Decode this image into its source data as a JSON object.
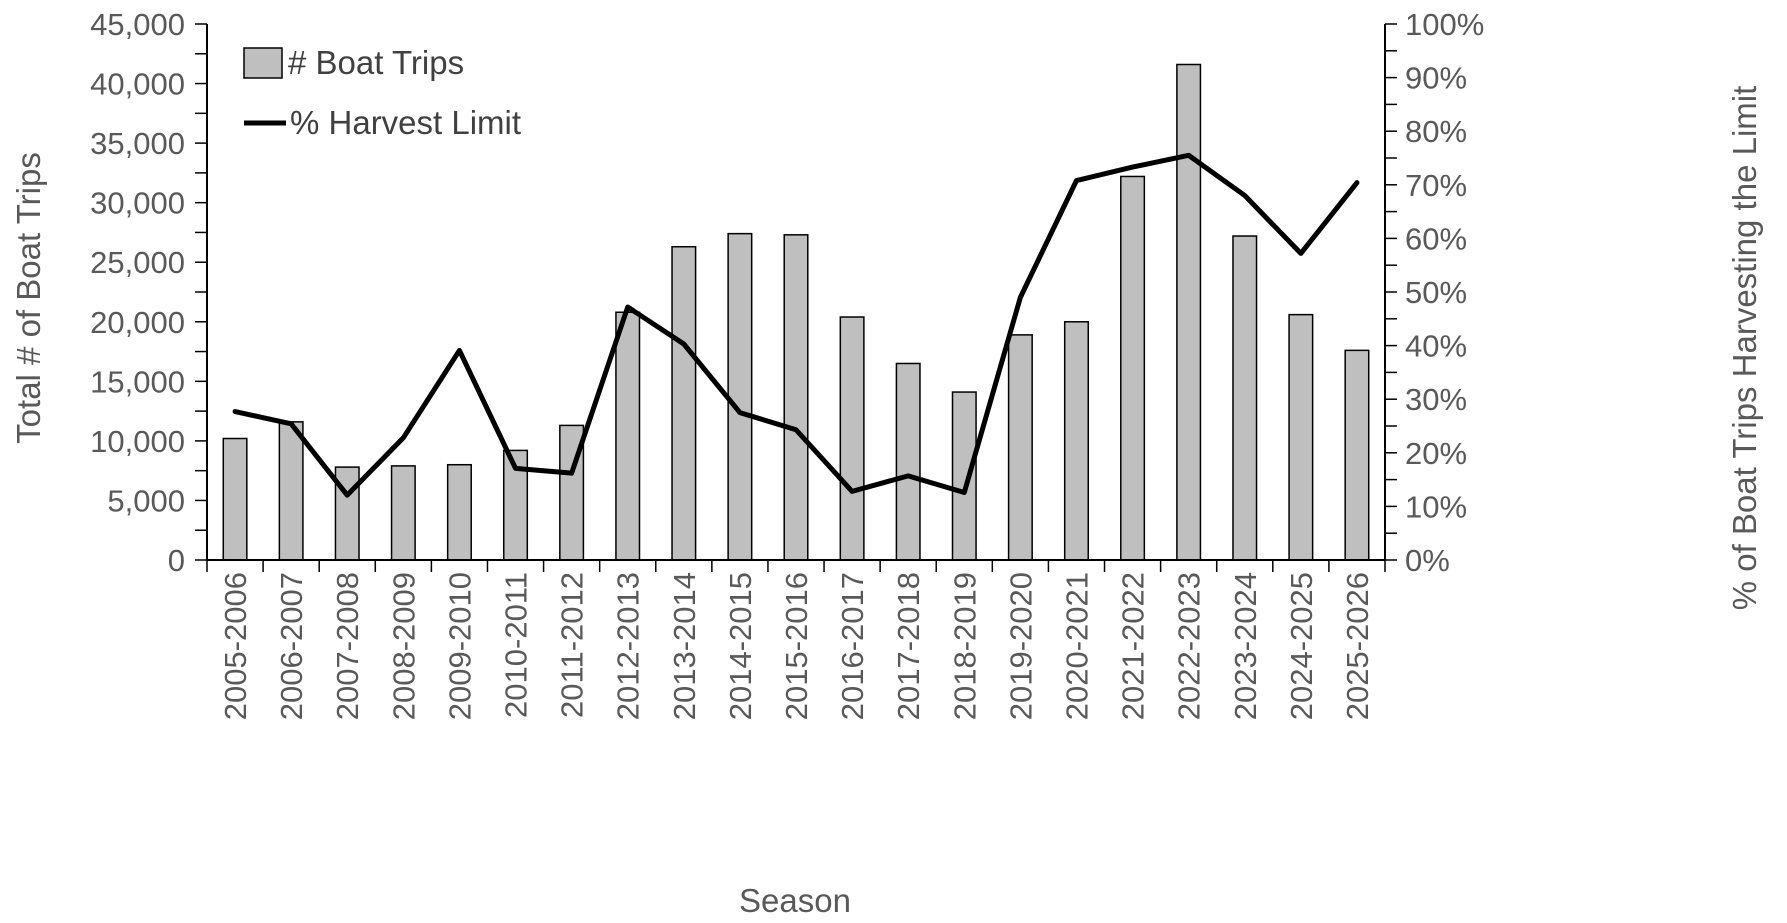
{
  "chart_data": {
    "type": "bar",
    "categories": [
      "2005-2006",
      "2006-2007",
      "2007-2008",
      "2008-2009",
      "2009-2010",
      "2010-2011",
      "2011-2012",
      "2012-2013",
      "2013-2014",
      "2014-2015",
      "2015-2016",
      "2016-2017",
      "2017-2018",
      "2018-2019",
      "2019-2020",
      "2020-2021",
      "2021-2022",
      "2022-2023",
      "2023-2024",
      "2024-2025",
      "2025-2026"
    ],
    "series": [
      {
        "name": "# Boat Trips",
        "type": "bar",
        "axis": "left",
        "color": "#bfbfbf",
        "values": [
          10200,
          11600,
          7800,
          7900,
          8000,
          9200,
          11300,
          20800,
          26300,
          27400,
          27300,
          20400,
          16500,
          14100,
          18900,
          20000,
          32200,
          41600,
          27200,
          20600,
          17600
        ]
      },
      {
        "name": "% Harvest Limit",
        "type": "line",
        "axis": "right",
        "color": "#000000",
        "values": [
          27.7,
          25.4,
          12.1,
          22.8,
          39.1,
          17.1,
          16.2,
          47.2,
          40.3,
          27.5,
          24.3,
          12.8,
          15.7,
          12.6,
          49.0,
          70.8,
          73.3,
          75.5,
          68.0,
          57.2,
          70.4
        ]
      }
    ],
    "xlabel": "Season",
    "ylabel": "Total # of Boat Trips",
    "y2label": "% of Boat Trips Harvesting the Limit",
    "ylim": [
      0,
      45000
    ],
    "y2lim": [
      0,
      100
    ],
    "yticks": [
      "0",
      "5,000",
      "10,000",
      "15,000",
      "20,000",
      "25,000",
      "30,000",
      "35,000",
      "40,000",
      "45,000"
    ],
    "y2ticks": [
      "0%",
      "10%",
      "20%",
      "30%",
      "40%",
      "50%",
      "60%",
      "70%",
      "80%",
      "90%",
      "100%"
    ],
    "legend_position": "top-left",
    "grid": false
  }
}
